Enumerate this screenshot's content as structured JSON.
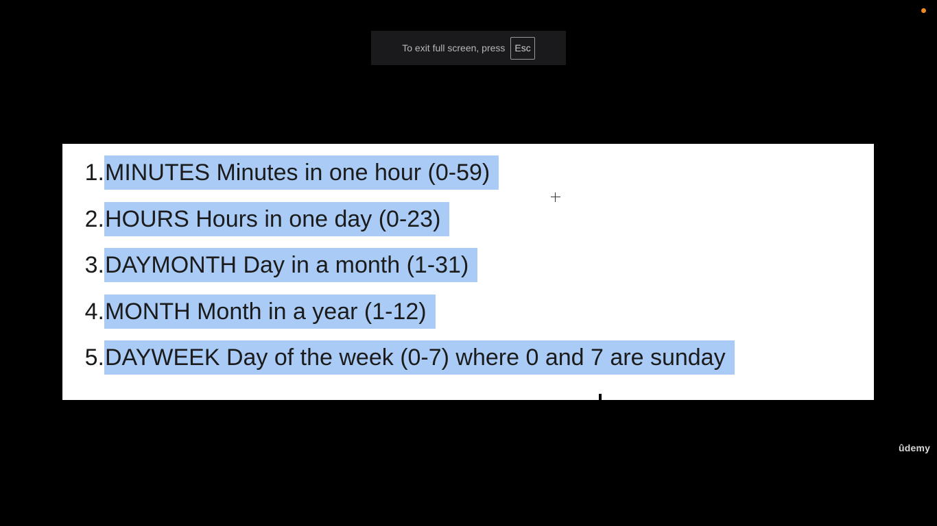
{
  "fullscreen_notice": {
    "message": "To exit full screen, press",
    "key": "Esc"
  },
  "slide": {
    "items": [
      {
        "number": "1.",
        "text": "MINUTES Minutes in one hour (0-59)"
      },
      {
        "number": "2.",
        "text": "HOURS Hours in one day (0-23)"
      },
      {
        "number": "3.",
        "text": "DAYMONTH Day in a month (1-31)"
      },
      {
        "number": "4.",
        "text": "MONTH Month in a year (1-12)"
      },
      {
        "number": "5.",
        "text": "DAYWEEK Day of the week (0-7) where 0 and 7 are sunday"
      }
    ],
    "highlight_color": "#a9cbf5"
  },
  "watermark": {
    "text": "ûdemy"
  },
  "colors": {
    "background": "#000000",
    "slide_background": "#ffffff",
    "recording_dot": "#f08a24"
  }
}
